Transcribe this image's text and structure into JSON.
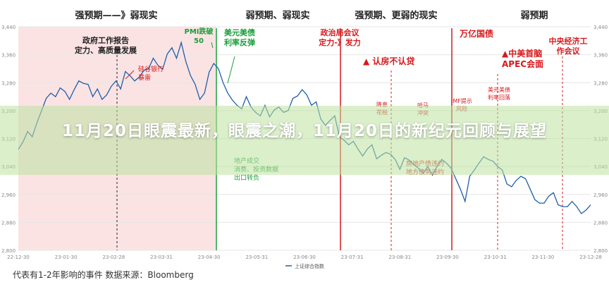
{
  "page_title": "11月20日眼震最新，眼震之潮，11月20日的新纪元回顾与展望",
  "footer_note": "代表有1-2年影响的事件 数据来源：Bloomberg",
  "colors": {
    "line": "#1f5fa8",
    "green": "#1a9e3a",
    "red": "#d7191c",
    "pink_zone": "#fbe3e4",
    "banner": "#bfe1a0"
  },
  "chart_data": {
    "type": "line",
    "title": "",
    "xlabel": "",
    "ylabel": "",
    "ylim": [
      2800,
      3440
    ],
    "yticks": [
      "2,800",
      "2,880",
      "2,960",
      "3,040",
      "3,120",
      "3,200",
      "3,280",
      "3,360",
      "3,440"
    ],
    "xticks": [
      "22-12-30",
      "23-01-30",
      "23-02-28",
      "23-03-31",
      "23-04-30",
      "23-05-31",
      "23-06-30",
      "23-07-31",
      "23-08-31",
      "23-09-30",
      "23-10-31",
      "23-11-30",
      "23-12-28"
    ],
    "legend": "上证综合指数",
    "series": [
      {
        "name": "上证综合指数",
        "values": [
          3089,
          3110,
          3140,
          3125,
          3165,
          3200,
          3235,
          3250,
          3240,
          3265,
          3255,
          3232,
          3260,
          3285,
          3278,
          3275,
          3240,
          3262,
          3232,
          3245,
          3270,
          3285,
          3262,
          3312,
          3300,
          3285,
          3296,
          3315,
          3320,
          3350,
          3330,
          3318,
          3362,
          3380,
          3350,
          3395,
          3340,
          3300,
          3275,
          3232,
          3250,
          3310,
          3335,
          3320,
          3280,
          3250,
          3230,
          3215,
          3205,
          3240,
          3210,
          3195,
          3185,
          3215,
          3182,
          3202,
          3210,
          3195,
          3200,
          3235,
          3242,
          3260,
          3245,
          3215,
          3225,
          3176,
          3158,
          3172,
          3185,
          3125,
          3115,
          3102,
          3112,
          3090,
          3070,
          3090,
          3102,
          3062,
          3072,
          3080,
          3075,
          3060,
          3032,
          3065,
          3058,
          3045,
          3035,
          3020,
          3040,
          3015,
          3040,
          3060,
          3050,
          3035,
          3005,
          2975,
          2940,
          3012,
          3030,
          3050,
          3068,
          3060,
          3055,
          3040,
          3030,
          2990,
          2982,
          3000,
          3012,
          3005,
          2975,
          2945,
          2935,
          2935,
          2955,
          2965,
          2930,
          2925,
          2925,
          2940,
          2925,
          2905,
          2915,
          2930
        ]
      }
    ],
    "header_labels": [
      "强预期——》弱现实",
      "弱预期、弱现实",
      "强预期、更弱的现实",
      "弱预期"
    ],
    "annotations": [
      {
        "id": "gov-report",
        "lines": [
          "政府工作报告",
          "定力、高质量发展"
        ],
        "color": "black"
      },
      {
        "id": "svb",
        "lines": [
          "硅谷银行",
          "暴雷"
        ],
        "color": "red"
      },
      {
        "id": "pmi",
        "lines": [
          "PMI跌破",
          "50"
        ],
        "color": "green"
      },
      {
        "id": "usd-bond",
        "lines": [
          "美元美债",
          "利率反弹"
        ],
        "color": "green"
      },
      {
        "id": "politburo",
        "lines": [
          "政治局会议",
          "定力-》发力"
        ],
        "color": "red"
      },
      {
        "id": "housing",
        "lines": [
          "▲ 认房不认贷"
        ],
        "color": "red"
      },
      {
        "id": "trillion",
        "lines": [
          "万亿国债"
        ],
        "color": "red"
      },
      {
        "id": "apec",
        "lines": [
          "▲中美首脑",
          "APEC会面"
        ],
        "color": "red"
      },
      {
        "id": "cewc",
        "lines": [
          "中央经济工",
          "作会议"
        ],
        "color": "red"
      },
      {
        "id": "rate-cut",
        "lines": [
          "降息",
          "花税"
        ],
        "color": "red"
      },
      {
        "id": "hamas",
        "lines": [
          "哈马",
          "冲突"
        ],
        "color": "red"
      },
      {
        "id": "imf",
        "lines": [
          "IMF提示",
          "风险"
        ],
        "color": "red"
      },
      {
        "id": "usd-bond-fall",
        "lines": [
          "美元美债",
          "利率回落"
        ],
        "color": "red"
      },
      {
        "id": "property-bullets",
        "lines": [
          "地产成交",
          "消费、投资数据",
          "出口转负"
        ],
        "color": "green"
      },
      {
        "id": "property-risk",
        "lines": [
          "房地产债违约",
          "地方债务违约"
        ],
        "color": "red"
      }
    ]
  }
}
